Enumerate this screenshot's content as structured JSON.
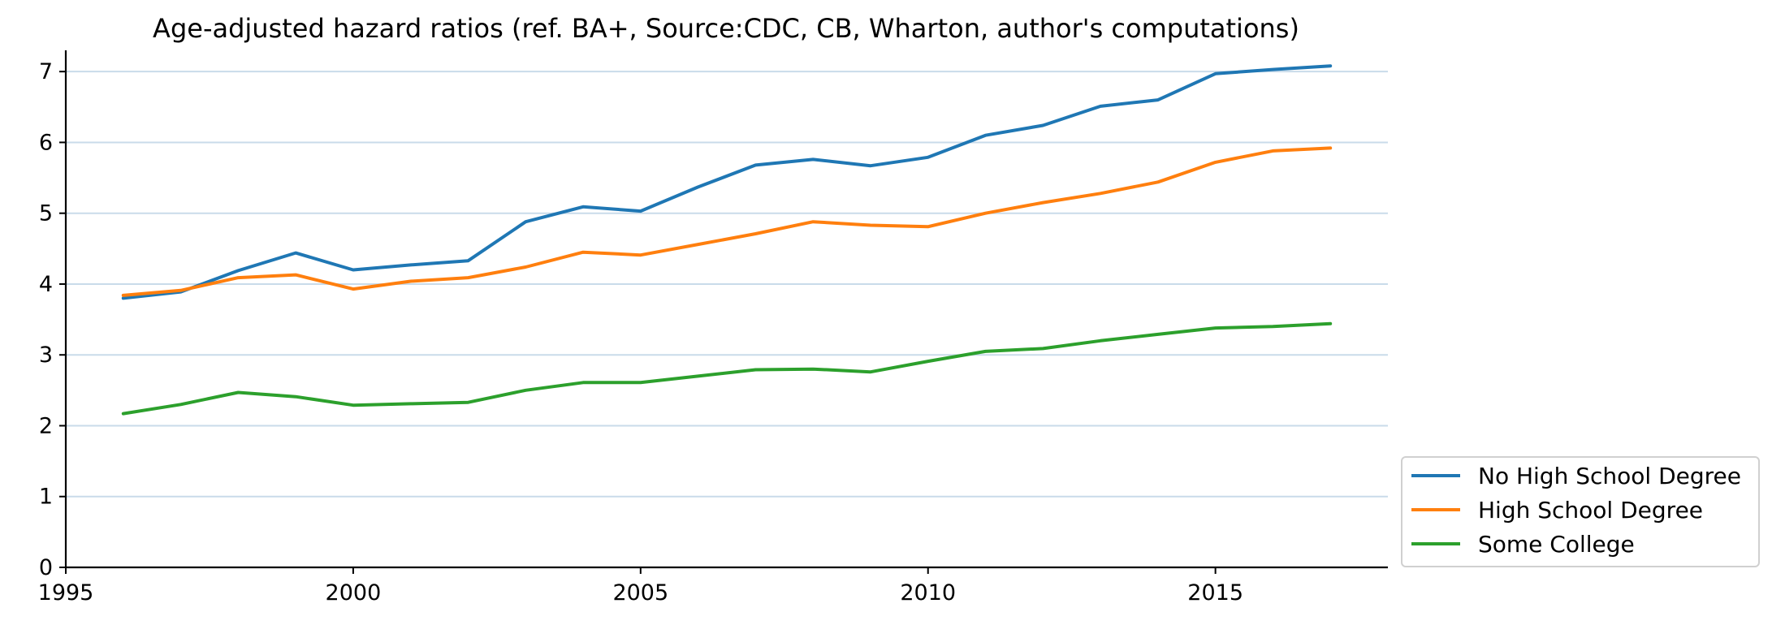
{
  "chart_data": {
    "type": "line",
    "title": "Age-adjusted hazard ratios (ref. BA+, Source:CDC, CB, Wharton, author's computations)",
    "xlabel": "",
    "ylabel": "",
    "xlim": [
      1995,
      2018
    ],
    "ylim": [
      0,
      7.3
    ],
    "x_ticks": [
      1995,
      2000,
      2005,
      2010,
      2015
    ],
    "y_ticks": [
      0,
      1,
      2,
      3,
      4,
      5,
      6,
      7
    ],
    "grid": "horizontal",
    "legend_position": "lower-right-outside",
    "x": [
      1996,
      1997,
      1998,
      1999,
      2000,
      2001,
      2002,
      2003,
      2004,
      2005,
      2006,
      2007,
      2008,
      2009,
      2010,
      2011,
      2012,
      2013,
      2014,
      2015,
      2016,
      2017
    ],
    "series": [
      {
        "name": "No High School Degree",
        "color": "#1f77b4",
        "values": [
          3.8,
          3.89,
          4.19,
          4.44,
          4.2,
          4.27,
          4.33,
          4.88,
          5.09,
          5.03,
          5.37,
          5.68,
          5.76,
          5.67,
          5.79,
          6.1,
          6.24,
          6.51,
          6.6,
          6.97,
          7.03,
          7.08
        ]
      },
      {
        "name": "High School Degree",
        "color": "#ff7f0e",
        "values": [
          3.84,
          3.91,
          4.09,
          4.13,
          3.93,
          4.04,
          4.09,
          4.24,
          4.45,
          4.41,
          4.56,
          4.71,
          4.88,
          4.83,
          4.81,
          5.0,
          5.15,
          5.28,
          5.44,
          5.72,
          5.88,
          5.92
        ]
      },
      {
        "name": "Some College",
        "color": "#2ca02c",
        "values": [
          2.17,
          2.3,
          2.47,
          2.41,
          2.29,
          2.31,
          2.33,
          2.5,
          2.61,
          2.61,
          2.7,
          2.79,
          2.8,
          2.76,
          2.91,
          3.05,
          3.09,
          3.2,
          3.29,
          3.38,
          3.4,
          3.44
        ]
      }
    ]
  }
}
